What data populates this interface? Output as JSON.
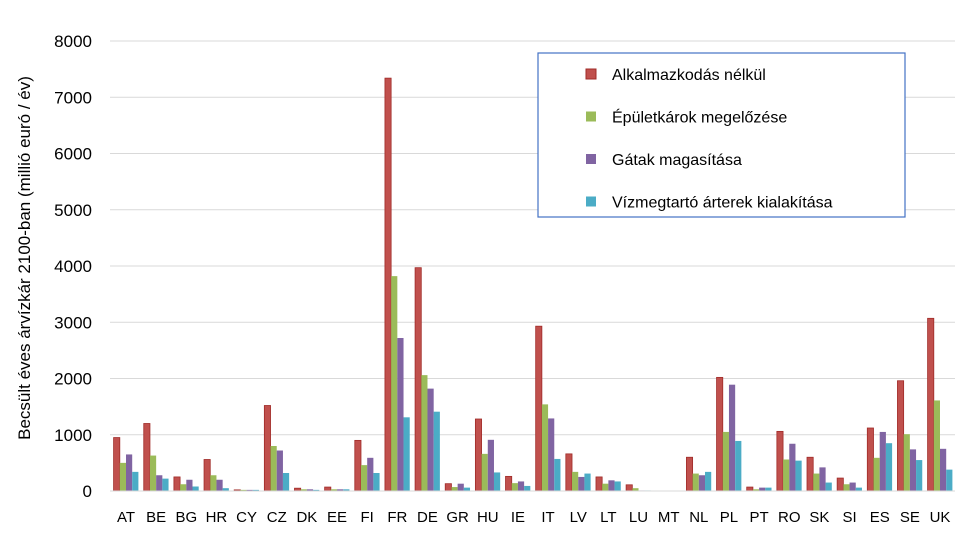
{
  "chart_data": {
    "type": "bar",
    "title": "",
    "xlabel": "",
    "ylabel": "Becsült éves árvízkár 2100-ban (millió euró / év)",
    "ylim": [
      0,
      8000
    ],
    "yticks": [
      "0",
      "1000",
      "2000",
      "3000",
      "4000",
      "5000",
      "6000",
      "7000",
      "8000"
    ],
    "grid": true,
    "legend_position": "top-right",
    "categories": [
      "AT",
      "BE",
      "BG",
      "HR",
      "CY",
      "CZ",
      "DK",
      "EE",
      "FI",
      "FR",
      "DE",
      "GR",
      "HU",
      "IE",
      "IT",
      "LV",
      "LT",
      "LU",
      "MT",
      "NL",
      "PL",
      "PT",
      "RO",
      "SK",
      "SI",
      "ES",
      "SE",
      "UK"
    ],
    "series": [
      {
        "name": "Alkalmazkodás nélkül",
        "color": "#C0504D",
        "values": [
          950,
          1200,
          250,
          560,
          20,
          1520,
          50,
          70,
          900,
          7340,
          3970,
          130,
          1280,
          260,
          2930,
          660,
          250,
          110,
          0,
          600,
          2020,
          70,
          1060,
          600,
          230,
          1120,
          1960,
          3070
        ]
      },
      {
        "name": "Épületkárok megelőzése",
        "color": "#9BBB59",
        "values": [
          500,
          630,
          120,
          280,
          20,
          800,
          30,
          30,
          460,
          3820,
          2060,
          70,
          660,
          140,
          1540,
          340,
          130,
          50,
          0,
          310,
          1050,
          30,
          560,
          310,
          120,
          590,
          1010,
          1610
        ]
      },
      {
        "name": "Gátak magasítása",
        "color": "#8064A2",
        "values": [
          650,
          280,
          200,
          200,
          20,
          720,
          30,
          30,
          590,
          2720,
          1820,
          130,
          910,
          170,
          1290,
          250,
          190,
          10,
          0,
          280,
          1890,
          60,
          840,
          420,
          150,
          1050,
          740,
          750
        ]
      },
      {
        "name": "Vízmegtartó árterek kialakítása",
        "color": "#4BACC6",
        "values": [
          340,
          220,
          80,
          50,
          20,
          320,
          20,
          30,
          320,
          1310,
          1410,
          60,
          330,
          90,
          570,
          310,
          170,
          10,
          0,
          340,
          890,
          60,
          540,
          150,
          60,
          850,
          550,
          380
        ]
      }
    ]
  }
}
